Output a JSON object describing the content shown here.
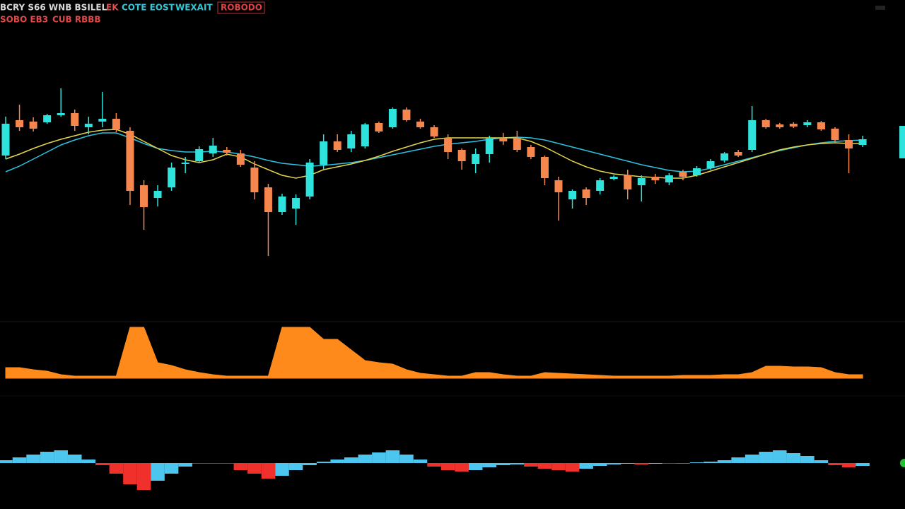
{
  "header": {
    "line1": [
      "BCRY S66 WNB BSILEL",
      "EK",
      "COTE EOST",
      "WEXAIT",
      "ROBODO"
    ],
    "line2": [
      "SOBO EB3",
      "CUB RBBB"
    ]
  },
  "chart_data": [
    {
      "type": "candlestick",
      "up_color": "#2de3dc",
      "down_color": "#f5874e",
      "ylim": [
        0,
        280
      ],
      "open": [
        160,
        210,
        208,
        207,
        217,
        220,
        200,
        208,
        212,
        195,
        118,
        100,
        115,
        148,
        152,
        163,
        168,
        163,
        143,
        115,
        80,
        85,
        102,
        147,
        180,
        170,
        173,
        206,
        200,
        225,
        208,
        200,
        185,
        168,
        148,
        162,
        185,
        185,
        172,
        158,
        125,
        98,
        112,
        110,
        127,
        132,
        118,
        130,
        122,
        137,
        132,
        142,
        153,
        165,
        168,
        210,
        204,
        205,
        203,
        207,
        198,
        182,
        175
      ],
      "high": [
        215,
        232,
        214,
        219,
        255,
        225,
        215,
        250,
        220,
        200,
        125,
        118,
        150,
        158,
        173,
        185,
        172,
        168,
        152,
        120,
        106,
        105,
        155,
        190,
        190,
        195,
        206,
        208,
        228,
        228,
        212,
        203,
        190,
        170,
        170,
        188,
        192,
        195,
        175,
        160,
        130,
        112,
        115,
        128,
        132,
        140,
        132,
        134,
        135,
        140,
        145,
        155,
        165,
        168,
        230,
        212,
        206,
        207,
        210,
        209,
        200,
        190,
        188
      ],
      "low": [
        155,
        195,
        194,
        205,
        215,
        195,
        190,
        200,
        193,
        90,
        55,
        88,
        110,
        135,
        150,
        158,
        160,
        144,
        98,
        18,
        76,
        62,
        98,
        140,
        165,
        165,
        170,
        192,
        198,
        208,
        198,
        185,
        155,
        140,
        135,
        150,
        175,
        165,
        155,
        118,
        68,
        85,
        90,
        105,
        125,
        98,
        95,
        120,
        118,
        125,
        130,
        140,
        150,
        158,
        165,
        198,
        198,
        199,
        200,
        195,
        178,
        135,
        172
      ],
      "close": [
        205,
        200,
        198,
        217,
        220,
        202,
        205,
        212,
        197,
        110,
        87,
        110,
        143,
        150,
        169,
        174,
        164,
        147,
        108,
        80,
        102,
        100,
        150,
        180,
        168,
        190,
        204,
        194,
        226,
        210,
        200,
        187,
        165,
        152,
        162,
        184,
        180,
        168,
        158,
        128,
        108,
        110,
        100,
        125,
        130,
        112,
        128,
        125,
        132,
        130,
        142,
        152,
        163,
        160,
        210,
        200,
        200,
        201,
        207,
        197,
        182,
        170,
        183
      ],
      "series": [
        {
          "color": "#2bc3e0",
          "values": [
            137,
            145,
            155,
            165,
            175,
            182,
            188,
            192,
            192,
            185,
            177,
            170,
            167,
            165,
            165,
            166,
            165,
            162,
            158,
            153,
            149,
            147,
            145,
            146,
            148,
            150,
            153,
            157,
            161,
            165,
            169,
            173,
            176,
            178,
            180,
            183,
            185,
            186,
            185,
            182,
            177,
            172,
            167,
            162,
            157,
            152,
            147,
            143,
            139,
            137,
            138,
            142,
            147,
            152,
            157,
            162,
            167,
            171,
            175,
            178,
            180,
            181,
            182
          ]
        },
        {
          "color": "#e4d44a",
          "values": [
            155,
            162,
            170,
            177,
            183,
            188,
            193,
            196,
            197,
            190,
            180,
            170,
            160,
            154,
            150,
            154,
            162,
            158,
            148,
            140,
            132,
            128,
            132,
            140,
            144,
            148,
            153,
            159,
            166,
            172,
            178,
            183,
            185,
            185,
            185,
            185,
            185,
            185,
            180,
            172,
            162,
            152,
            144,
            138,
            134,
            132,
            130,
            129,
            128,
            128,
            132,
            138,
            144,
            150,
            156,
            162,
            168,
            172,
            175,
            177,
            178,
            177,
            177
          ]
        }
      ]
    },
    {
      "type": "area",
      "color": "#ff8a1c",
      "ylim": [
        0,
        80
      ],
      "values": [
        15,
        15,
        12,
        10,
        5,
        3,
        3,
        3,
        3,
        72,
        72,
        22,
        18,
        12,
        8,
        5,
        3,
        3,
        3,
        3,
        72,
        72,
        72,
        55,
        55,
        40,
        25,
        22,
        20,
        12,
        7,
        5,
        3,
        3,
        8,
        8,
        5,
        3,
        3,
        8,
        7,
        6,
        5,
        4,
        3,
        3,
        3,
        3,
        3,
        4,
        4,
        4,
        5,
        5,
        8,
        17,
        17,
        16,
        16,
        15,
        8,
        5,
        5
      ]
    },
    {
      "type": "histogram",
      "up_color": "#4cc6ef",
      "down_color": "#f0302a",
      "ylim": [
        -45,
        25
      ],
      "values": [
        4,
        8,
        12,
        16,
        18,
        12,
        5,
        -3,
        -15,
        -30,
        -38,
        -25,
        -15,
        -5,
        0,
        0,
        0,
        -10,
        -15,
        -22,
        -18,
        -10,
        -3,
        2,
        5,
        8,
        12,
        15,
        18,
        12,
        5,
        -5,
        -10,
        -12,
        -10,
        -6,
        -3,
        -2,
        -5,
        -8,
        -10,
        -12,
        -8,
        -4,
        -2,
        -1,
        -2,
        -1,
        0,
        -1,
        1,
        2,
        4,
        8,
        12,
        16,
        18,
        14,
        10,
        4,
        -3,
        -6,
        -4
      ]
    }
  ]
}
